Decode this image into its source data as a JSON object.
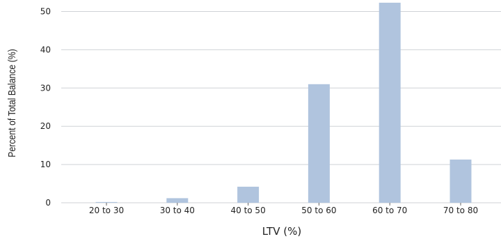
{
  "chart_data": {
    "type": "bar",
    "categories": [
      "20 to 30",
      "30 to 40",
      "40 to 50",
      "50 to 60",
      "60 to 70",
      "70 to 80"
    ],
    "values": [
      0.2,
      1.2,
      4.2,
      31.0,
      52.3,
      11.3
    ],
    "title": "",
    "xlabel": "LTV (%)",
    "ylabel": "Percent of Total Balance (%)",
    "ylim": [
      0,
      55
    ],
    "yticks": [
      0,
      10,
      20,
      30,
      40,
      50
    ],
    "grid": "horizontal",
    "bar_color": "#b0c4de",
    "legend": "none"
  }
}
